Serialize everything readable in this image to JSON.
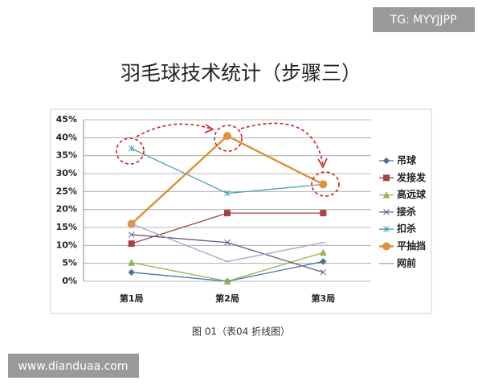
{
  "watermark_top": "TG: MYYJJPP",
  "watermark_bottom": "www.dianduaa.com",
  "chart_data": {
    "type": "line",
    "title": "羽毛球技术统计（步骤三）",
    "caption": "图 01（表04 折线图）",
    "categories": [
      "第1局",
      "第2局",
      "第3局"
    ],
    "ylim": [
      0,
      45
    ],
    "yticks": [
      {
        "value": 0,
        "label": "0%"
      },
      {
        "value": 5,
        "label": "5%"
      },
      {
        "value": 10,
        "label": "10%"
      },
      {
        "value": 15,
        "label": "15%"
      },
      {
        "value": 20,
        "label": "20%"
      },
      {
        "value": 25,
        "label": "25%"
      },
      {
        "value": 30,
        "label": "30%"
      },
      {
        "value": 35,
        "label": "35%"
      },
      {
        "value": 40,
        "label": "40%"
      },
      {
        "value": 45,
        "label": "45%"
      }
    ],
    "grid": true,
    "legend": "right",
    "series": [
      {
        "name": "吊球",
        "color": "#4a6fa5",
        "marker": "diamond",
        "values": [
          2.5,
          0,
          5.5
        ]
      },
      {
        "name": "发接发",
        "color": "#a5443f",
        "marker": "square",
        "values": [
          10.5,
          19,
          19
        ]
      },
      {
        "name": "高远球",
        "color": "#93b354",
        "marker": "triangle",
        "values": [
          5.2,
          0,
          8
        ]
      },
      {
        "name": "接杀",
        "color": "#6b5688",
        "marker": "x",
        "values": [
          13,
          10.8,
          2.5
        ]
      },
      {
        "name": "扣杀",
        "color": "#4aa3b5",
        "marker": "star",
        "values": [
          37,
          24.5,
          27
        ]
      },
      {
        "name": "平抽挡",
        "color": "#e0913a",
        "marker": "circle",
        "values": [
          16,
          40.5,
          27
        ]
      },
      {
        "name": "网前",
        "color": "#a9a3c9",
        "marker": "plus",
        "values": [
          16,
          5.5,
          10.8
        ]
      }
    ]
  }
}
